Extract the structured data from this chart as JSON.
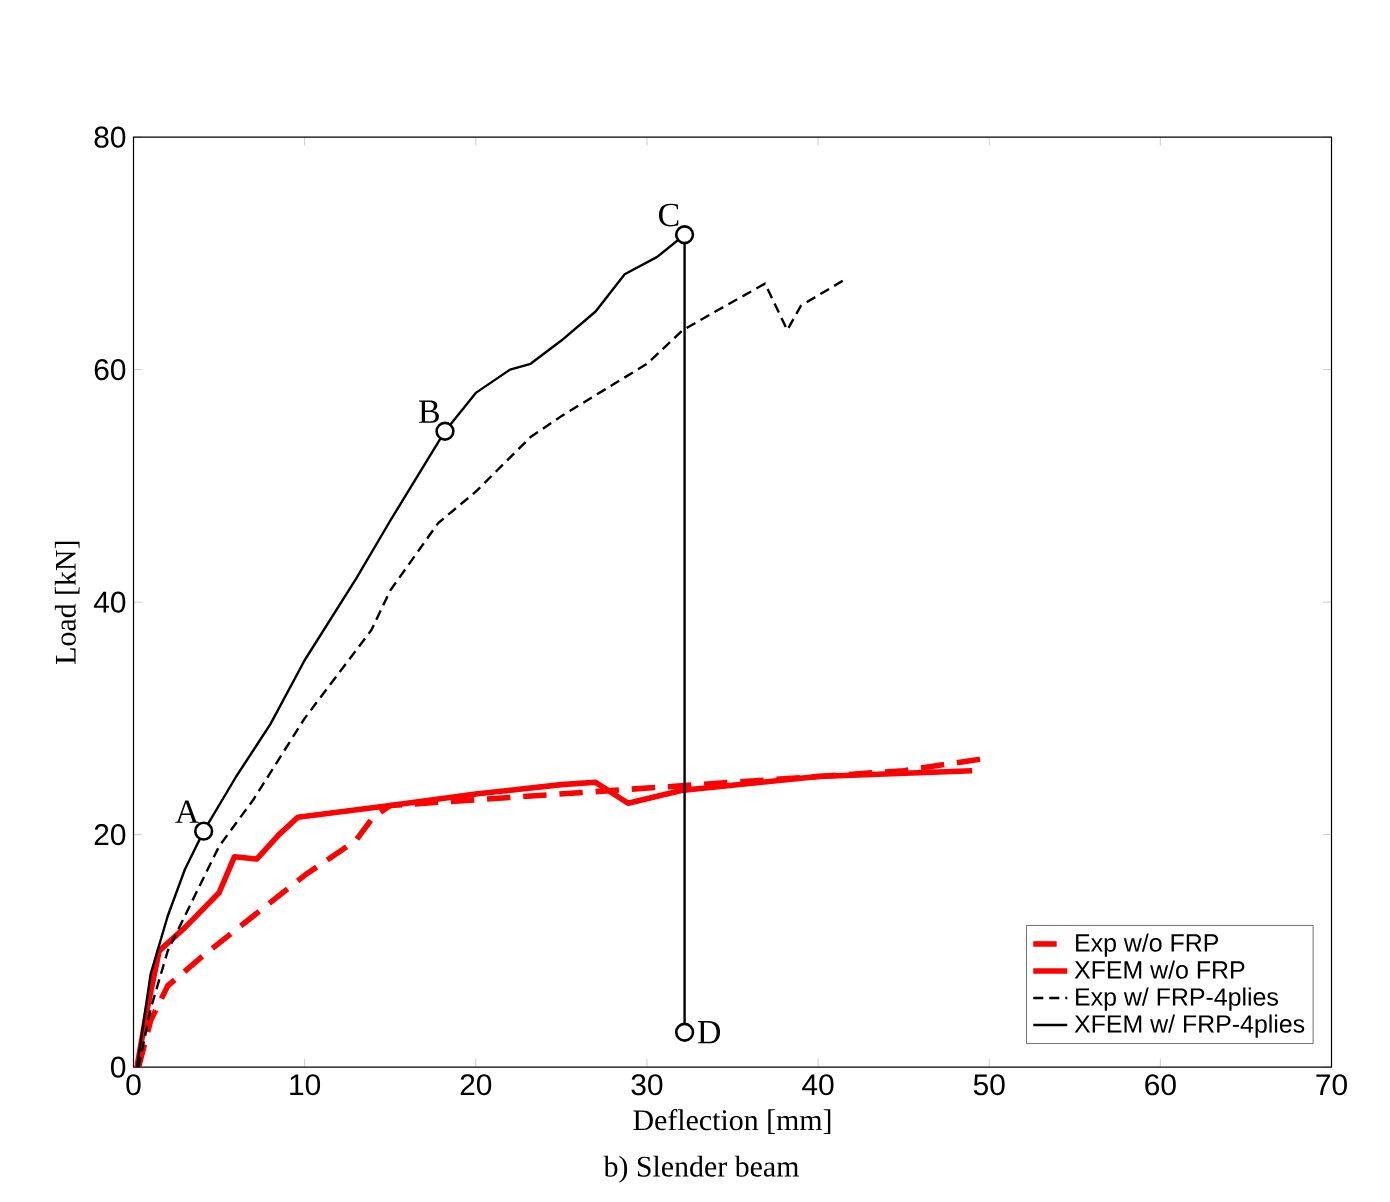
{
  "chart_data": {
    "type": "line",
    "xlabel": "Deflection [mm]",
    "ylabel": "Load [kN]",
    "xlim": [
      0,
      70
    ],
    "ylim": [
      0,
      80
    ],
    "xticks": [
      0,
      10,
      20,
      30,
      40,
      50,
      60,
      70
    ],
    "yticks": [
      0,
      20,
      40,
      60,
      80
    ],
    "grid": false,
    "legend": "bottom right",
    "series": [
      {
        "name": "Exp w/o FRP",
        "color": "#ff0000",
        "line_style": "dashed",
        "x": [
          0.3,
          1,
          2,
          4,
          7,
          10,
          13,
          14,
          15,
          20,
          25,
          30,
          35,
          40,
          45,
          49.5
        ],
        "values": [
          0,
          4,
          7,
          9.5,
          13,
          16.5,
          19.5,
          21.5,
          22.5,
          23,
          23.5,
          24,
          24.5,
          25,
          25.5,
          26.5
        ]
      },
      {
        "name": "XFEM w/o FRP",
        "color": "#ff0000",
        "line_style": "solid",
        "x": [
          0.2,
          0.8,
          1.5,
          3,
          5,
          5.9,
          7.2,
          8.5,
          9.6,
          15,
          20,
          25,
          27,
          28.9,
          32,
          40,
          49
        ],
        "values": [
          0,
          5,
          10,
          12,
          15,
          18.1,
          17.9,
          20,
          21.5,
          22.5,
          23.5,
          24.3,
          24.5,
          22.7,
          23.8,
          25,
          25.5
        ]
      },
      {
        "name": "Exp w/ FRP-4plies",
        "color": "#000000",
        "line_style": "dashed",
        "x": [
          0.3,
          1,
          2,
          3,
          4,
          5,
          7,
          10,
          13.9,
          15,
          17.8,
          20,
          23.2,
          25,
          30,
          32.1,
          34,
          36.9,
          38.2,
          39,
          41.5
        ],
        "values": [
          0,
          5,
          10,
          13,
          16,
          19,
          23,
          30,
          37.6,
          41,
          46.8,
          49.5,
          54.2,
          56,
          60.5,
          63.4,
          65,
          67.4,
          63.4,
          65.5,
          67.7
        ]
      },
      {
        "name": "XFEM w/ FRP-4plies",
        "color": "#000000",
        "line_style": "solid",
        "x": [
          0.2,
          1,
          2,
          3,
          4.1,
          6,
          8,
          10,
          13,
          15,
          18.2,
          20,
          22,
          23.2,
          25,
          27,
          28.7,
          30.6,
          32.2
        ],
        "values": [
          0,
          8,
          13,
          17,
          20.3,
          25,
          29.5,
          35,
          42,
          47,
          54.7,
          58,
          60,
          60.5,
          62.5,
          65,
          68.2,
          69.7,
          71.6
        ]
      },
      {
        "color": "#000000",
        "line_style": "solid",
        "x": [
          32.2,
          32.2
        ],
        "values": [
          71.6,
          3
        ]
      },
      {
        "type": "scatter",
        "marker": "circle",
        "color": "#000000",
        "x": [
          4.1,
          18.2,
          32.2,
          32.2
        ],
        "values": [
          20.3,
          54.7,
          71.6,
          3
        ]
      }
    ],
    "annotations": [
      {
        "text": "A",
        "x": 4.1,
        "y": 20.3
      },
      {
        "text": "B",
        "x": 18.2,
        "y": 54.7
      },
      {
        "text": "C",
        "x": 32.2,
        "y": 71.6
      },
      {
        "text": "D",
        "x": 32.2,
        "y": 3
      },
      "b) Slender beam"
    ]
  }
}
